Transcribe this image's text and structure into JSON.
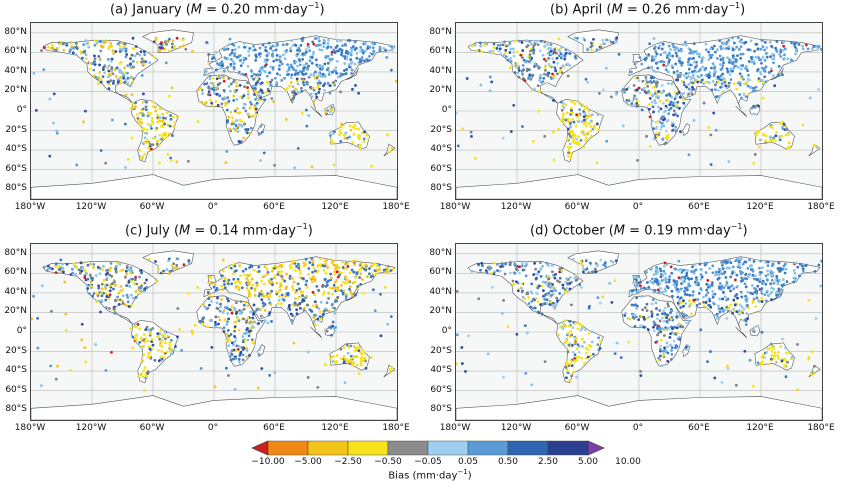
{
  "panels": [
    {
      "id": "a",
      "letter": "(a)",
      "month": "January",
      "m_value": "0.20",
      "unit": "mm·day",
      "exp": "−1",
      "palette": [
        "#3a78c0",
        "#5b9bd5",
        "#86c3ea",
        "#f7e21a",
        "#f3c41b",
        "#808080",
        "#2f4f9c"
      ]
    },
    {
      "id": "b",
      "letter": "(b)",
      "month": "April",
      "m_value": "0.26",
      "unit": "mm·day",
      "exp": "−1",
      "palette": [
        "#3a78c0",
        "#5b9bd5",
        "#86c3ea",
        "#9ecff0",
        "#f7e21a",
        "#2f4f9c",
        "#808080"
      ]
    },
    {
      "id": "c",
      "letter": "(c)",
      "month": "July",
      "m_value": "0.14",
      "unit": "mm·day",
      "exp": "−1",
      "palette": [
        "#f7e21a",
        "#f3c41b",
        "#3a78c0",
        "#5b9bd5",
        "#86c3ea",
        "#808080",
        "#2f4f9c"
      ]
    },
    {
      "id": "d",
      "letter": "(d)",
      "month": "October",
      "m_value": "0.19",
      "unit": "mm·day",
      "exp": "−1",
      "palette": [
        "#3a78c0",
        "#5b9bd5",
        "#86c3ea",
        "#9ecff0",
        "#f7e21a",
        "#2f4f9c",
        "#808080"
      ]
    }
  ],
  "lat_labels": [
    "80°N",
    "60°N",
    "40°N",
    "20°N",
    "0°",
    "20°S",
    "40°S",
    "60°S",
    "80°S"
  ],
  "lon_labels": [
    "180°W",
    "120°W",
    "60°W",
    "0°",
    "60°E",
    "120°E",
    "180°E"
  ],
  "colorbar": {
    "title": "Bias (mm·day",
    "title_exp": "−1",
    "title_close": ")",
    "ticks": [
      "−10.00",
      "−5.00",
      "−2.50",
      "−0.50",
      "−0.05",
      "0.05",
      "0.50",
      "2.50",
      "5.00",
      "10.00"
    ],
    "colors": [
      "#cc1f1f",
      "#f08a16",
      "#f3c41b",
      "#f7e21a",
      "#8c8c8c",
      "#9ecff0",
      "#5b9bd5",
      "#2f66b3",
      "#2a3f8f",
      "#7a3fa8"
    ]
  }
}
